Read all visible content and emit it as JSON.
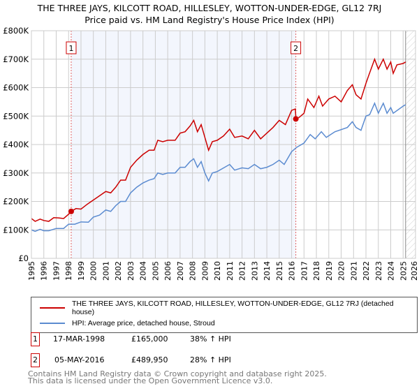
{
  "title_line1": "THE THREE JAYS, KILCOTT ROAD, HILLESLEY, WOTTON-UNDER-EDGE, GL12 7RJ",
  "title_line2": "Price paid vs. HM Land Registry's House Price Index (HPI)",
  "chart_data": {
    "type": "line",
    "title": "THE THREE JAYS, KILCOTT ROAD, HILLESLEY, WOTTON-UNDER-EDGE, GL12 7RJ — Price paid vs. HM Land Registry's House Price Index (HPI)",
    "xlim": [
      1995,
      2026
    ],
    "ylim": [
      0,
      800000
    ],
    "x_ticks": [
      "1995",
      "1996",
      "1997",
      "1998",
      "1999",
      "2000",
      "2001",
      "2002",
      "2003",
      "2004",
      "2005",
      "2006",
      "2007",
      "2008",
      "2009",
      "2010",
      "2011",
      "2012",
      "2013",
      "2014",
      "2015",
      "2016",
      "2017",
      "2018",
      "2019",
      "2020",
      "2021",
      "2022",
      "2023",
      "2024",
      "2025",
      "2026"
    ],
    "y_ticks": [
      {
        "v": 0,
        "label": "£0"
      },
      {
        "v": 100000,
        "label": "£100K"
      },
      {
        "v": 200000,
        "label": "£200K"
      },
      {
        "v": 300000,
        "label": "£300K"
      },
      {
        "v": 400000,
        "label": "£400K"
      },
      {
        "v": 500000,
        "label": "£500K"
      },
      {
        "v": 600000,
        "label": "£600K"
      },
      {
        "v": 700000,
        "label": "£700K"
      },
      {
        "v": 800000,
        "label": "£800K"
      }
    ],
    "grid": true,
    "series": [
      {
        "name": "THE THREE JAYS, KILCOTT ROAD, HILLESLEY, WOTTON-UNDER-EDGE, GL12 7RJ (detached house)",
        "color": "#cc0000",
        "x": [
          1995,
          1995.3,
          1995.7,
          1996,
          1996.4,
          1996.8,
          1997.2,
          1997.6,
          1998,
          1998.2,
          1998.6,
          1999,
          1999.5,
          2000,
          2000.5,
          2001,
          2001.4,
          2001.8,
          2002.2,
          2002.6,
          2003,
          2003.5,
          2004,
          2004.5,
          2004.9,
          2005.2,
          2005.6,
          2006,
          2006.6,
          2007,
          2007.4,
          2007.8,
          2008.1,
          2008.4,
          2008.7,
          2009,
          2009.3,
          2009.6,
          2010,
          2010.5,
          2011,
          2011.4,
          2012,
          2012.5,
          2013,
          2013.5,
          2014,
          2014.5,
          2015,
          2015.5,
          2016,
          2016.3,
          2016.35,
          2016.6,
          2017,
          2017.3,
          2017.8,
          2018.2,
          2018.5,
          2019,
          2019.5,
          2020,
          2020.5,
          2020.9,
          2021.2,
          2021.6,
          2022,
          2022.2,
          2022.7,
          2023,
          2023.4,
          2023.7,
          2024,
          2024.2,
          2024.5,
          2025,
          2025.2
        ],
        "values": [
          140000,
          130000,
          138000,
          133000,
          130000,
          143000,
          142000,
          140000,
          155000,
          165000,
          175000,
          173000,
          190000,
          205000,
          220000,
          235000,
          230000,
          250000,
          275000,
          275000,
          320000,
          345000,
          365000,
          380000,
          380000,
          415000,
          410000,
          415000,
          415000,
          440000,
          445000,
          465000,
          485000,
          445000,
          470000,
          425000,
          380000,
          410000,
          415000,
          430000,
          454000,
          425000,
          430000,
          420000,
          450000,
          420000,
          440000,
          460000,
          485000,
          470000,
          520000,
          525000,
          489950,
          495000,
          510000,
          560000,
          530000,
          570000,
          535000,
          560000,
          570000,
          550000,
          590000,
          610000,
          575000,
          560000,
          615000,
          640000,
          700000,
          665000,
          700000,
          665000,
          690000,
          650000,
          680000,
          685000,
          690000
        ]
      },
      {
        "name": "HPI: Average price, detached house, Stroud",
        "color": "#5b8bd0",
        "x": [
          1995,
          1995.3,
          1995.7,
          1996,
          1996.4,
          1997,
          1997.6,
          1998,
          1998.5,
          1999,
          1999.6,
          2000,
          2000.5,
          2001,
          2001.4,
          2001.8,
          2002.2,
          2002.6,
          2003,
          2003.5,
          2004,
          2004.5,
          2004.9,
          2005.2,
          2005.6,
          2006,
          2006.6,
          2007,
          2007.4,
          2007.8,
          2008.1,
          2008.4,
          2008.7,
          2009,
          2009.3,
          2009.6,
          2010,
          2011,
          2011.4,
          2012,
          2012.5,
          2013,
          2013.5,
          2014,
          2014.5,
          2015,
          2015.4,
          2016,
          2016.4,
          2017,
          2017.5,
          2017.9,
          2018.4,
          2018.8,
          2019.5,
          2020.5,
          2020.9,
          2021.2,
          2021.6,
          2022,
          2022.3,
          2022.7,
          2023,
          2023.4,
          2023.7,
          2024,
          2024.2,
          2025,
          2025.2
        ],
        "values": [
          100000,
          95000,
          102000,
          97000,
          97000,
          105000,
          105000,
          120000,
          120000,
          128000,
          127000,
          145000,
          152000,
          170000,
          165000,
          185000,
          200000,
          200000,
          230000,
          250000,
          265000,
          275000,
          280000,
          300000,
          295000,
          300000,
          300000,
          320000,
          320000,
          340000,
          350000,
          320000,
          340000,
          300000,
          272000,
          300000,
          305000,
          330000,
          310000,
          318000,
          315000,
          330000,
          315000,
          320000,
          330000,
          345000,
          330000,
          375000,
          390000,
          405000,
          435000,
          420000,
          445000,
          425000,
          445000,
          460000,
          480000,
          460000,
          450000,
          500000,
          505000,
          545000,
          510000,
          545000,
          510000,
          530000,
          510000,
          535000,
          540000
        ]
      }
    ],
    "annotations": [
      {
        "label": "1",
        "x": 1998.21,
        "value": 165000
      },
      {
        "label": "2",
        "x": 2016.34,
        "value": 489950
      }
    ],
    "shaded_range": [
      1998.21,
      2016.34
    ],
    "hatched_from": 2025.2,
    "legend_position": "bottom"
  },
  "legend": {
    "red": "THE THREE JAYS, KILCOTT ROAD, HILLESLEY, WOTTON-UNDER-EDGE, GL12 7RJ (detached house)",
    "blue": "HPI: Average price, detached house, Stroud"
  },
  "sales": [
    {
      "num": "1",
      "date": "17-MAR-1998",
      "price": "£165,000",
      "hpi": "38% ↑ HPI"
    },
    {
      "num": "2",
      "date": "05-MAY-2016",
      "price": "£489,950",
      "hpi": "28% ↑ HPI"
    }
  ],
  "footer_line1": "Contains HM Land Registry data © Crown copyright and database right 2025.",
  "footer_line2": "This data is licensed under the Open Government Licence v3.0."
}
